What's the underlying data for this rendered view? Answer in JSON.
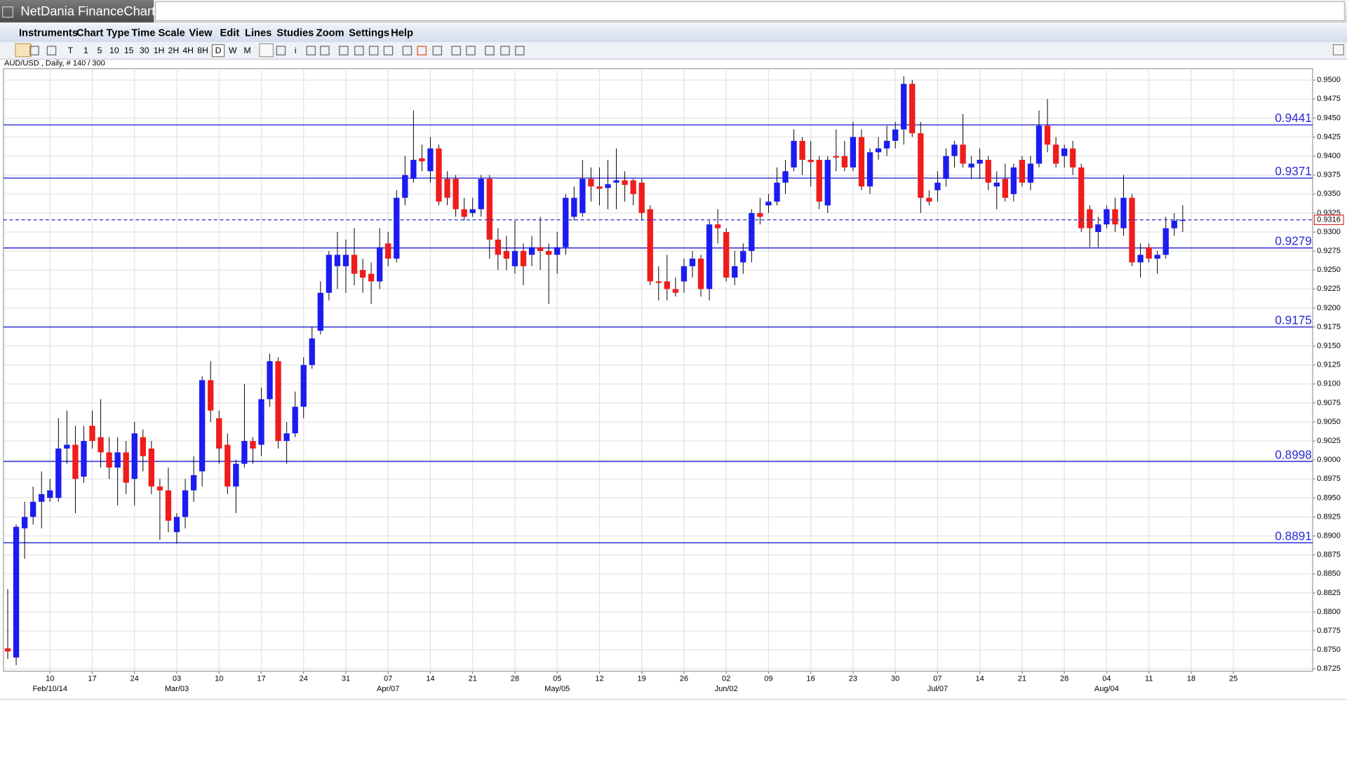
{
  "window": {
    "title": "NetDania FinanceChart"
  },
  "menu": [
    "Instruments",
    "Chart Type",
    "Time Scale",
    "View",
    "Edit",
    "Lines",
    "Studies",
    "Zoom",
    "Settings",
    "Help"
  ],
  "toolbar": [
    "T",
    "1",
    "5",
    "10",
    "15",
    "30",
    "1H",
    "2H",
    "4H",
    "8H",
    "D",
    "W",
    "M",
    "i"
  ],
  "chart_data": {
    "type": "candlestick",
    "subtitle": "AUD/USD , Daily, # 140 / 300",
    "up_color": "#1c1cf0",
    "down_color": "#f01c1c",
    "level_color": "#2b2bd6",
    "grid": true,
    "categories": [
      null,
      null,
      null,
      null,
      null,
      "10",
      null,
      null,
      null,
      null,
      "17",
      null,
      null,
      null,
      null,
      "24",
      null,
      null,
      null,
      null,
      "03",
      null,
      null,
      null,
      null,
      "10",
      null,
      null,
      null,
      null,
      "17",
      null,
      null,
      null,
      null,
      "24",
      null,
      null,
      null,
      null,
      "31",
      null,
      null,
      null,
      null,
      "07",
      null,
      null,
      null,
      null,
      "14",
      null,
      null,
      null,
      null,
      "21",
      null,
      null,
      null,
      null,
      "28",
      null,
      null,
      null,
      null,
      "05",
      null,
      null,
      null,
      null,
      "12",
      null,
      null,
      null,
      null,
      "19",
      null,
      null,
      null,
      null,
      "26",
      null,
      null,
      null,
      null,
      "02",
      null,
      null,
      null,
      null,
      "09",
      null,
      null,
      null,
      null,
      "16",
      null,
      null,
      null,
      null,
      "23",
      null,
      null,
      null,
      null,
      "30",
      null,
      null,
      null,
      null,
      "07",
      null,
      null,
      null,
      null,
      "14",
      null,
      null,
      null,
      null,
      "21",
      null,
      null,
      null,
      null,
      "28",
      null,
      null,
      null,
      null,
      "04",
      null,
      null,
      null,
      null,
      "11",
      null,
      null,
      null,
      null,
      "18",
      null,
      null,
      null,
      null,
      "25",
      null,
      null,
      null,
      null,
      null,
      null,
      null,
      null,
      null
    ],
    "month_labels": [
      null,
      null,
      null,
      null,
      null,
      "Feb/10/14",
      null,
      null,
      null,
      null,
      null,
      null,
      null,
      null,
      null,
      null,
      null,
      null,
      null,
      null,
      "Mar/03",
      null,
      null,
      null,
      null,
      null,
      null,
      null,
      null,
      null,
      null,
      null,
      null,
      null,
      null,
      null,
      null,
      null,
      null,
      null,
      null,
      null,
      null,
      null,
      null,
      "Apr/07",
      null,
      null,
      null,
      null,
      null,
      null,
      null,
      null,
      null,
      null,
      null,
      null,
      null,
      null,
      null,
      null,
      null,
      null,
      null,
      "May/05",
      null,
      null,
      null,
      null,
      null,
      null,
      null,
      null,
      null,
      null,
      null,
      null,
      null,
      null,
      null,
      null,
      null,
      null,
      null,
      "Jun/02",
      null,
      null,
      null,
      null,
      null,
      null,
      null,
      null,
      null,
      null,
      null,
      null,
      null,
      null,
      null,
      null,
      null,
      null,
      null,
      null,
      null,
      null,
      null,
      null,
      "Jul/07",
      null,
      null,
      null,
      null,
      null,
      null,
      null,
      null,
      null,
      null,
      null,
      null,
      null,
      null,
      null,
      null,
      null,
      null,
      null,
      "Aug/04",
      null,
      null,
      null,
      null,
      null,
      null,
      null,
      null,
      null,
      null,
      null,
      null,
      null,
      null,
      null,
      null,
      null,
      null,
      null,
      null,
      null,
      null,
      null,
      null
    ],
    "open": [
      0.8752,
      0.874,
      0.891,
      0.8925,
      0.8945,
      0.895,
      0.895,
      0.9015,
      0.902,
      0.8978,
      0.9045,
      0.903,
      0.901,
      0.899,
      0.901,
      0.8975,
      0.903,
      0.9015,
      0.8965,
      0.896,
      0.8905,
      0.8925,
      0.896,
      0.8985,
      0.9105,
      0.9055,
      0.902,
      0.8965,
      0.8995,
      0.9025,
      0.902,
      0.908,
      0.913,
      0.9025,
      0.9035,
      0.907,
      0.9125,
      0.917,
      0.922,
      0.9255,
      0.9255,
      0.927,
      0.925,
      0.9245,
      0.9235,
      0.9285,
      0.9265,
      0.9345,
      0.937,
      0.9397,
      0.938,
      0.941,
      0.937,
      0.937,
      0.933,
      0.9325,
      0.933,
      0.937,
      0.929,
      0.9275,
      0.9255,
      0.9275,
      0.927,
      0.928,
      0.9275,
      0.927,
      0.928,
      0.932,
      0.9325,
      0.937,
      0.936,
      0.9358,
      0.9365,
      0.9368,
      0.9368,
      0.9365,
      0.933,
      0.9235,
      0.9235,
      0.9225,
      0.9235,
      0.9255,
      0.9265,
      0.9225,
      0.931,
      0.93,
      0.924,
      0.926,
      0.9275,
      0.9325,
      0.9335,
      0.934,
      0.9365,
      0.9385,
      0.942,
      0.9395,
      0.9395,
      0.9335,
      0.94,
      0.94,
      0.9385,
      0.9425,
      0.936,
      0.9405,
      0.941,
      0.942,
      0.9435,
      0.9495,
      0.943,
      0.9345,
      0.9355,
      0.937,
      0.94,
      0.9415,
      0.9385,
      0.939,
      0.9395,
      0.936,
      0.937,
      0.935,
      0.9395,
      0.9365,
      0.939,
      0.944,
      0.9415,
      0.94,
      0.941,
      0.9385,
      0.933,
      0.93,
      0.931,
      0.933,
      0.9305,
      0.9345,
      0.926,
      0.928,
      0.9265,
      0.927,
      0.9305,
      0.9315,
      null,
      null,
      null,
      null,
      null,
      null,
      null,
      null,
      null,
      null,
      null,
      null,
      null,
      null,
      null
    ],
    "high": [
      0.883,
      0.8915,
      0.8945,
      0.8965,
      0.8985,
      0.8975,
      0.9055,
      0.9065,
      0.9045,
      0.9045,
      0.9065,
      0.908,
      0.903,
      0.903,
      0.9025,
      0.905,
      0.904,
      0.9025,
      0.8975,
      0.899,
      0.893,
      0.8975,
      0.9005,
      0.911,
      0.913,
      0.9065,
      0.9035,
      0.9,
      0.91,
      0.903,
      0.9095,
      0.914,
      0.9135,
      0.905,
      0.909,
      0.9135,
      0.9175,
      0.9235,
      0.9275,
      0.93,
      0.929,
      0.9305,
      0.9265,
      0.926,
      0.9305,
      0.93,
      0.9355,
      0.94,
      0.946,
      0.9415,
      0.9425,
      0.9415,
      0.938,
      0.9375,
      0.9345,
      0.9345,
      0.9375,
      0.9375,
      0.9305,
      0.9295,
      0.9315,
      0.9285,
      0.9295,
      0.932,
      0.9285,
      0.93,
      0.935,
      0.936,
      0.9395,
      0.9385,
      0.9385,
      0.9395,
      0.941,
      0.938,
      0.937,
      0.937,
      0.9335,
      0.9255,
      0.927,
      0.924,
      0.9265,
      0.9275,
      0.927,
      0.9315,
      0.933,
      0.9305,
      0.9275,
      0.9285,
      0.933,
      0.9345,
      0.935,
      0.9385,
      0.9395,
      0.9435,
      0.9425,
      0.942,
      0.94,
      0.94,
      0.9435,
      0.942,
      0.9445,
      0.9435,
      0.941,
      0.9425,
      0.944,
      0.9445,
      0.9505,
      0.95,
      0.9445,
      0.9355,
      0.938,
      0.941,
      0.942,
      0.9455,
      0.94,
      0.941,
      0.94,
      0.938,
      0.939,
      0.939,
      0.94,
      0.94,
      0.946,
      0.9475,
      0.9425,
      0.9415,
      0.942,
      0.939,
      0.9335,
      0.932,
      0.9335,
      0.9345,
      0.9375,
      0.935,
      0.9285,
      0.9285,
      0.9275,
      0.932,
      0.9325,
      0.9335,
      null,
      null,
      null,
      null,
      null,
      null,
      null,
      null,
      null,
      null,
      null,
      null,
      null,
      null,
      null
    ],
    "low": [
      0.8738,
      0.873,
      0.887,
      0.8915,
      0.891,
      0.8945,
      0.8945,
      0.8995,
      0.893,
      0.897,
      0.9015,
      0.899,
      0.8975,
      0.894,
      0.8955,
      0.894,
      0.8985,
      0.8955,
      0.8895,
      0.8905,
      0.889,
      0.891,
      0.8945,
      0.8965,
      0.905,
      0.8995,
      0.8955,
      0.893,
      0.899,
      0.8995,
      0.9005,
      0.907,
      0.9015,
      0.8995,
      0.903,
      0.9055,
      0.912,
      0.9165,
      0.921,
      0.9225,
      0.922,
      0.923,
      0.922,
      0.9205,
      0.9225,
      0.9255,
      0.926,
      0.9335,
      0.9365,
      0.938,
      0.9365,
      0.9335,
      0.9335,
      0.932,
      0.9315,
      0.932,
      0.932,
      0.9265,
      0.925,
      0.925,
      0.9245,
      0.923,
      0.9255,
      0.925,
      0.9205,
      0.9245,
      0.927,
      0.9315,
      0.932,
      0.934,
      0.9335,
      0.933,
      0.933,
      0.934,
      0.9335,
      0.9315,
      0.923,
      0.921,
      0.921,
      0.9215,
      0.922,
      0.924,
      0.9215,
      0.921,
      0.9285,
      0.9235,
      0.923,
      0.9245,
      0.926,
      0.931,
      0.9325,
      0.9335,
      0.935,
      0.938,
      0.9375,
      0.936,
      0.933,
      0.9325,
      0.938,
      0.938,
      0.938,
      0.9355,
      0.935,
      0.9395,
      0.94,
      0.941,
      0.9415,
      0.9425,
      0.9325,
      0.9335,
      0.934,
      0.936,
      0.9385,
      0.9385,
      0.937,
      0.937,
      0.9355,
      0.933,
      0.934,
      0.934,
      0.936,
      0.9355,
      0.9385,
      0.9405,
      0.9385,
      0.9385,
      0.9375,
      0.93,
      0.928,
      0.928,
      0.9305,
      0.93,
      0.9295,
      0.9255,
      0.924,
      0.926,
      0.9245,
      0.9265,
      0.9295,
      0.93,
      null,
      null,
      null,
      null,
      null,
      null,
      null,
      null,
      null,
      null,
      null,
      null,
      null,
      null,
      null
    ],
    "close": [
      0.8748,
      0.8912,
      0.8925,
      0.8945,
      0.8955,
      0.896,
      0.9015,
      0.902,
      0.8975,
      0.9025,
      0.9025,
      0.901,
      0.899,
      0.901,
      0.897,
      0.9035,
      0.9005,
      0.8965,
      0.896,
      0.892,
      0.8925,
      0.896,
      0.898,
      0.9105,
      0.9065,
      0.9015,
      0.8965,
      0.8995,
      0.9025,
      0.9015,
      0.908,
      0.913,
      0.9025,
      0.9035,
      0.907,
      0.9125,
      0.916,
      0.922,
      0.927,
      0.927,
      0.927,
      0.9245,
      0.924,
      0.9235,
      0.928,
      0.9265,
      0.9345,
      0.9375,
      0.9395,
      0.9393,
      0.941,
      0.934,
      0.9345,
      0.933,
      0.932,
      0.933,
      0.937,
      0.929,
      0.927,
      0.9265,
      0.9275,
      0.9255,
      0.928,
      0.9275,
      0.927,
      0.928,
      0.9345,
      0.9345,
      0.937,
      0.936,
      0.9357,
      0.9363,
      0.9368,
      0.9362,
      0.935,
      0.9325,
      0.9235,
      0.9233,
      0.9225,
      0.922,
      0.9255,
      0.9265,
      0.9225,
      0.931,
      0.9305,
      0.924,
      0.9255,
      0.9275,
      0.9325,
      0.932,
      0.934,
      0.9365,
      0.938,
      0.942,
      0.9395,
      0.9392,
      0.934,
      0.9395,
      0.9398,
      0.9385,
      0.9425,
      0.936,
      0.9405,
      0.941,
      0.942,
      0.9435,
      0.9495,
      0.943,
      0.9345,
      0.934,
      0.9365,
      0.94,
      0.9415,
      0.939,
      0.939,
      0.9395,
      0.9365,
      0.9365,
      0.9345,
      0.9385,
      0.9365,
      0.939,
      0.944,
      0.9415,
      0.939,
      0.941,
      0.9385,
      0.9305,
      0.9305,
      0.931,
      0.933,
      0.931,
      0.9345,
      0.926,
      0.927,
      0.9265,
      0.927,
      0.9305,
      0.9315,
      0.9316,
      null,
      null,
      null,
      null,
      null,
      null,
      null,
      null,
      null,
      null,
      null,
      null,
      null,
      null,
      null
    ],
    "levels": [
      0.9441,
      0.9371,
      0.9279,
      0.9175,
      0.8998,
      0.8891
    ],
    "last": 0.9316,
    "ylim": [
      0.8722,
      0.9515
    ],
    "yticks": [
      0.8725,
      {
        "value": 0.875,
        "label": "0.8750"
      },
      0.8775,
      {
        "value": 0.88,
        "label": "0.8800"
      },
      0.8825,
      {
        "value": 0.885,
        "label": "0.8850"
      },
      0.8875,
      {
        "value": 0.89,
        "label": "0.8900"
      },
      0.8925,
      {
        "value": 0.895,
        "label": "0.8950"
      },
      0.8975,
      {
        "value": 0.9,
        "label": "0.9000"
      },
      0.9025,
      {
        "value": 0.905,
        "label": "0.9050"
      },
      0.9075,
      {
        "value": 0.91,
        "label": "0.9100"
      },
      0.9125,
      {
        "value": 0.915,
        "label": "0.9150"
      },
      0.9175,
      {
        "value": 0.92,
        "label": "0.9200"
      },
      0.9225,
      {
        "value": 0.925,
        "label": "0.9250"
      },
      0.9275,
      {
        "value": 0.93,
        "label": "0.9300"
      },
      0.9325,
      {
        "value": 0.935,
        "label": "0.9350"
      },
      0.9375,
      {
        "value": 0.94,
        "label": "0.9400"
      },
      0.9425,
      {
        "value": 0.945,
        "label": "0.9450"
      },
      0.9475,
      {
        "value": 0.95,
        "label": "0.9500"
      }
    ]
  }
}
